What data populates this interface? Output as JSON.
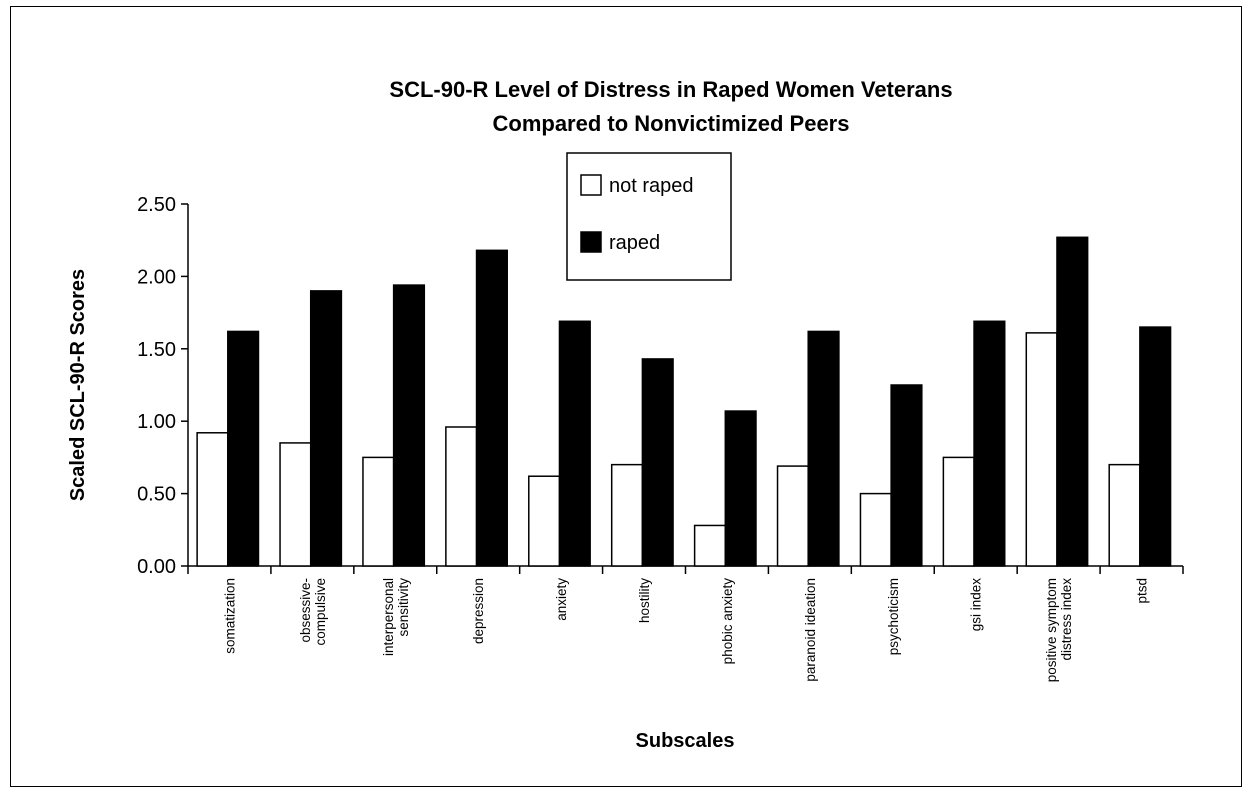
{
  "chart_data": {
    "type": "bar",
    "title": [
      "SCL-90-R Level of Distress in Raped Women Veterans",
      "Compared to Nonvictimized Peers"
    ],
    "xlabel": "Subscales",
    "ylabel": "Scaled  SCL-90-R  Scores",
    "ylim": [
      0,
      2.5
    ],
    "yticks": [
      "0.00",
      "0.50",
      "1.00",
      "1.50",
      "2.00",
      "2.50"
    ],
    "yticks_values": [
      0,
      0.5,
      1.0,
      1.5,
      2.0,
      2.5
    ],
    "categories": [
      [
        "somatization"
      ],
      [
        "obsessive-",
        "compulsive"
      ],
      [
        "interpersonal",
        "sensitivity"
      ],
      [
        "depression"
      ],
      [
        "anxiety"
      ],
      [
        "hostility"
      ],
      [
        "phobic anxiety"
      ],
      [
        "paranoid ideation"
      ],
      [
        "psychoticism"
      ],
      [
        "gsi index"
      ],
      [
        "positive symptom",
        "distress index"
      ],
      [
        "ptsd"
      ]
    ],
    "series": [
      {
        "name": "not raped",
        "color": "#ffffff",
        "values": [
          0.92,
          0.85,
          0.75,
          0.96,
          0.62,
          0.7,
          0.28,
          0.69,
          0.5,
          0.75,
          1.61,
          0.7
        ]
      },
      {
        "name": "raped",
        "color": "#000000",
        "values": [
          1.62,
          1.9,
          1.94,
          2.18,
          1.69,
          1.43,
          1.07,
          1.62,
          1.25,
          1.69,
          2.27,
          1.65
        ]
      }
    ],
    "legend": "top-center",
    "grid": false
  }
}
